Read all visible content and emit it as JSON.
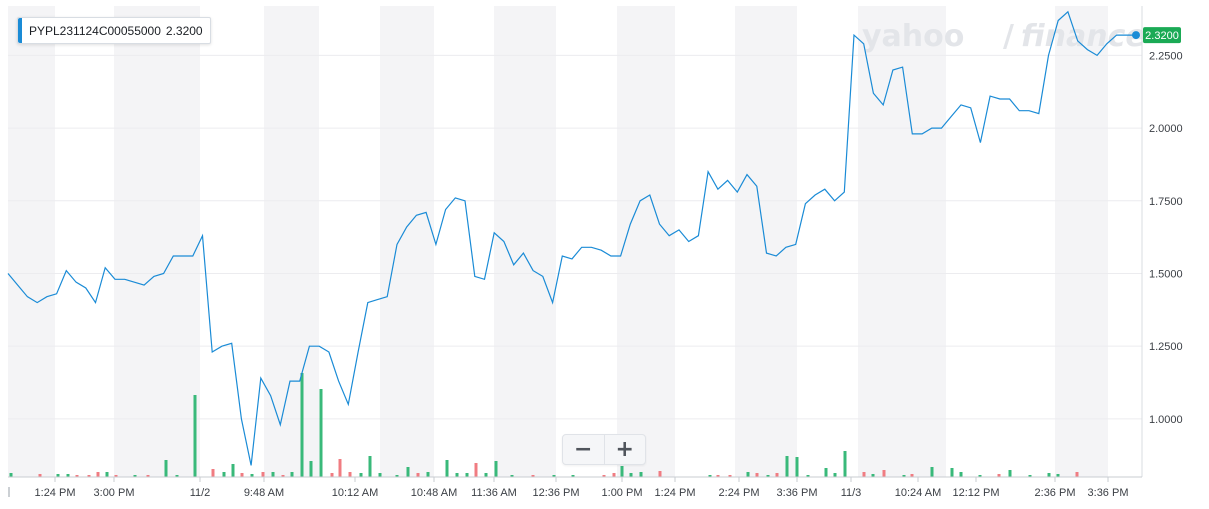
{
  "legend": {
    "symbol": "PYPL231124C00055000",
    "value": "2.3200"
  },
  "watermark": {
    "left": "yahoo",
    "right": "finance",
    "slash": "/"
  },
  "zoom": {
    "minus_label": "−",
    "plus_label": "+"
  },
  "colors": {
    "line": "#1a8bd6",
    "up": "#39b97a",
    "down": "#f07c82",
    "last_badge": "#1aaa55",
    "band": "#f4f4f6",
    "grid": "#ececef"
  },
  "chart_data": {
    "type": "line",
    "title": "",
    "xlabel": "",
    "ylabel": "",
    "ylim": [
      0.8,
      2.42
    ],
    "y_ticks": [
      1.0,
      1.25,
      1.5,
      1.75,
      2.0,
      2.25
    ],
    "y_tick_labels": [
      "1.0000",
      "1.2500",
      "1.5000",
      "1.7500",
      "2.0000",
      "2.2500"
    ],
    "y_axis_position": "right",
    "x_tick_labels": [
      "1:24 PM",
      "3:00 PM",
      "11/2",
      "9:48 AM",
      "10:12 AM",
      "10:48 AM",
      "11:36 AM",
      "12:36 PM",
      "1:00 PM",
      "1:24 PM",
      "2:24 PM",
      "3:36 PM",
      "11/3",
      "10:24 AM",
      "12:12 PM",
      "2:36 PM",
      "3:36 PM"
    ],
    "last_value": 2.32,
    "last_value_label": "2.3200",
    "grid": true,
    "series": [
      {
        "values": [
          1.5,
          1.46,
          1.42,
          1.4,
          1.42,
          1.43,
          1.51,
          1.47,
          1.45,
          1.4,
          1.52,
          1.48,
          1.48,
          1.47,
          1.46,
          1.49,
          1.5,
          1.56,
          1.56,
          1.56,
          1.63,
          1.23,
          1.25,
          1.26,
          1.0,
          0.84,
          1.14,
          1.08,
          0.98,
          1.13,
          1.13,
          1.25,
          1.25,
          1.23,
          1.13,
          1.05,
          1.23,
          1.4,
          1.41,
          1.42,
          1.6,
          1.66,
          1.7,
          1.71,
          1.6,
          1.72,
          1.76,
          1.75,
          1.49,
          1.48,
          1.64,
          1.61,
          1.53,
          1.57,
          1.51,
          1.49,
          1.4,
          1.56,
          1.55,
          1.59,
          1.59,
          1.58,
          1.56,
          1.56,
          1.67,
          1.75,
          1.77,
          1.67,
          1.63,
          1.65,
          1.61,
          1.63,
          1.85,
          1.79,
          1.82,
          1.78,
          1.84,
          1.8,
          1.57,
          1.56,
          1.59,
          1.6,
          1.74,
          1.77,
          1.79,
          1.75,
          1.78,
          2.32,
          2.29,
          2.12,
          2.08,
          2.2,
          2.21,
          1.98,
          1.98,
          2.0,
          2.0,
          2.04,
          2.08,
          2.07,
          1.95,
          2.11,
          2.1,
          2.1,
          2.06,
          2.06,
          2.05,
          2.25,
          2.37,
          2.4,
          2.3,
          2.27,
          2.25,
          2.29,
          2.32,
          2.32,
          2.32
        ]
      }
    ],
    "volume": {
      "values": [
        0.02,
        0,
        0,
        0,
        0,
        0.01,
        0,
        0.01,
        0,
        0.02,
        0,
        0.01,
        0,
        0,
        0,
        0.02,
        0,
        0.01,
        0,
        0,
        0,
        0,
        0,
        0,
        0.01,
        0,
        0,
        0.04,
        0,
        0,
        0.14,
        0,
        0,
        0.02,
        0,
        0.04,
        0,
        0,
        0.01,
        0,
        0.01,
        0,
        0,
        0.17,
        0,
        0.06,
        0,
        0.02,
        0,
        0,
        0,
        0.02,
        0,
        0.03,
        0,
        0.03,
        0,
        0,
        0,
        0,
        0,
        0,
        0,
        0,
        0,
        0,
        0,
        0,
        0.02,
        0,
        0,
        0.01,
        0,
        0.02,
        0,
        0.02,
        0,
        0,
        0,
        0,
        0.05,
        0,
        0.05,
        0,
        0.02,
        0,
        0,
        0,
        0,
        0,
        0.01,
        0,
        0,
        0.02,
        0,
        0.02,
        0,
        0,
        0.01,
        0,
        0,
        0,
        0,
        0,
        0,
        0,
        0,
        0,
        0,
        0,
        0,
        0,
        0,
        0,
        0,
        0,
        0,
        0,
        0,
        0,
        0,
        0,
        0,
        0.02,
        0,
        0.02,
        0,
        0,
        0.01,
        0,
        0,
        0,
        0.02,
        0,
        0,
        0,
        0,
        0.02,
        0,
        0,
        0,
        0,
        0,
        0.02,
        0,
        0,
        0,
        0,
        0.03,
        0,
        0,
        0,
        0,
        0.02,
        0,
        0,
        0,
        0.05,
        0,
        0,
        0,
        0.05,
        0,
        0.02,
        0,
        0.01,
        0,
        0,
        0,
        0,
        0,
        0.02,
        0,
        0,
        0,
        0,
        0,
        0.01,
        0,
        0,
        0,
        0,
        0,
        0.03,
        0,
        0,
        0,
        0.01,
        0,
        0,
        0,
        0.02,
        0,
        0,
        0,
        0,
        0,
        0,
        0,
        0,
        0,
        0,
        0,
        0,
        0,
        0.02,
        0,
        0,
        0,
        0,
        0.02,
        0,
        0,
        0,
        0.02,
        0,
        0,
        0
      ],
      "note_unused": ""
    }
  }
}
